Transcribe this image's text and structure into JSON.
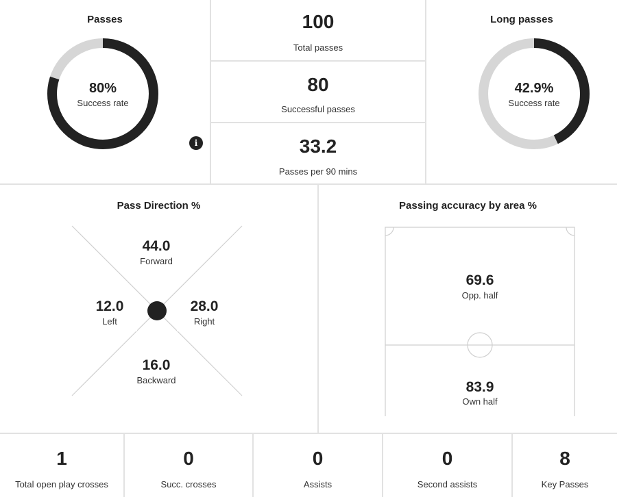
{
  "passes": {
    "title": "Passes",
    "success_pct": 80,
    "success_text": "80%",
    "success_label": "Success rate"
  },
  "totals": {
    "total_value": "100",
    "total_label": "Total passes",
    "successful_value": "80",
    "successful_label": "Successful passes",
    "per90_value": "33.2",
    "per90_label": "Passes per 90 mins"
  },
  "long_passes": {
    "title": "Long passes",
    "success_pct": 42.9,
    "success_text": "42.9%",
    "success_label": "Success rate"
  },
  "pass_direction": {
    "title": "Pass Direction %",
    "forward_value": "44.0",
    "forward_label": "Forward",
    "left_value": "12.0",
    "left_label": "Left",
    "right_value": "28.0",
    "right_label": "Right",
    "backward_value": "16.0",
    "backward_label": "Backward"
  },
  "accuracy_by_area": {
    "title": "Passing accuracy by area %",
    "opp_value": "69.6",
    "opp_label": "Opp. half",
    "own_value": "83.9",
    "own_label": "Own half"
  },
  "bottom_stats": [
    {
      "value": "1",
      "label": "Total open play crosses"
    },
    {
      "value": "0",
      "label": "Succ. crosses"
    },
    {
      "value": "0",
      "label": "Assists"
    },
    {
      "value": "0",
      "label": "Second assists"
    },
    {
      "value": "8",
      "label": "Key Passes"
    }
  ],
  "colors": {
    "ring_fill": "#222222",
    "ring_track": "#d6d6d6",
    "divider": "#e2e2e2"
  },
  "icons": {
    "info": "info-icon"
  }
}
